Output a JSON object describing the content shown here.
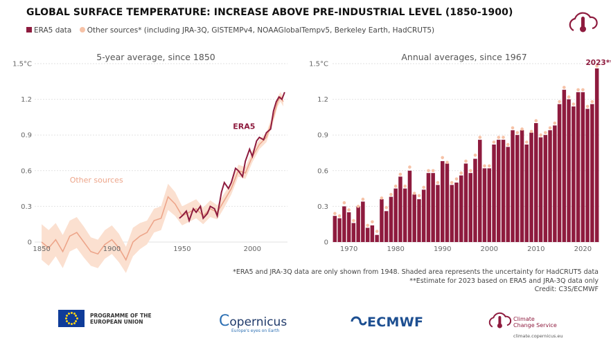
{
  "title": "GLOBAL SURFACE TEMPERATURE: INCREASE ABOVE PRE-INDUSTRIAL LEVEL (1850-1900)",
  "legend": {
    "era5": "ERA5 data",
    "other": "Other sources* (including JRA-3Q, GISTEMPv4, NOAAGlobalTempv5, Berkeley Earth, HadCRUT5)"
  },
  "notes": [
    "*ERA5 and JRA-3Q data are only shown from 1948. Shaded area represents the uncertainty for HadCRUT5 data",
    "**Estimate for 2023 based on ERA5 and JRA-3Q data only",
    "Credit: C3S/ECMWF"
  ],
  "footer": {
    "eu_line1": "PROGRAMME OF THE",
    "eu_line2": "EUROPEAN UNION",
    "copernicus": "opernicus",
    "copernicus_tag": "Europe's eyes on Earth",
    "ecmwf": "ECMWF",
    "c3s_line1": "Climate",
    "c3s_line2": "Change Service",
    "c3s_url": "climate.copernicus.eu"
  },
  "colors": {
    "era5": "#8e1b3e",
    "other": "#f6c2a7",
    "other_line": "#eda58a",
    "band": "#fbe0d0",
    "grid": "#e2e2e2"
  },
  "chart_data": [
    {
      "type": "line",
      "title": "5-year average, since 1850",
      "ylabel": "°C",
      "xlim": [
        1845,
        2025
      ],
      "ylim": [
        0,
        1.5
      ],
      "yticks": [
        0,
        0.3,
        0.6,
        0.9,
        1.2,
        1.5
      ],
      "ytick_labels": [
        "0",
        "0.3",
        "0.6",
        "0.9",
        "1.2",
        "1.5°C"
      ],
      "xticks": [
        1850,
        1900,
        1950,
        2000
      ],
      "grid": true,
      "annotations": [
        {
          "text": "ERA5",
          "x": 2002,
          "y": 0.95,
          "series": "ERA5"
        },
        {
          "text": "Other sources",
          "x": 1870,
          "y": 0.5,
          "series": "Other sources"
        }
      ],
      "series": [
        {
          "name": "Other sources",
          "x": [
            1850,
            1855,
            1860,
            1865,
            1870,
            1875,
            1880,
            1885,
            1890,
            1895,
            1900,
            1905,
            1910,
            1915,
            1920,
            1925,
            1930,
            1935,
            1940,
            1945,
            1950,
            1955,
            1960,
            1965,
            1970,
            1975,
            1980,
            1985,
            1990,
            1995,
            2000,
            2005,
            2010,
            2015,
            2018,
            2020,
            2022
          ],
          "y": [
            0.0,
            -0.05,
            0.02,
            -0.08,
            0.05,
            0.08,
            0.0,
            -0.08,
            -0.1,
            -0.02,
            0.02,
            -0.05,
            -0.15,
            0.0,
            0.05,
            0.08,
            0.18,
            0.2,
            0.38,
            0.32,
            0.22,
            0.25,
            0.28,
            0.22,
            0.28,
            0.25,
            0.35,
            0.45,
            0.6,
            0.58,
            0.72,
            0.82,
            0.88,
            1.05,
            1.18,
            1.22,
            1.18
          ],
          "band_low": [
            -0.15,
            -0.2,
            -0.12,
            -0.22,
            -0.08,
            -0.05,
            -0.13,
            -0.2,
            -0.22,
            -0.14,
            -0.1,
            -0.17,
            -0.26,
            -0.12,
            -0.06,
            -0.02,
            0.08,
            0.1,
            0.27,
            0.22,
            0.14,
            0.17,
            0.2,
            0.15,
            0.21,
            0.19,
            0.29,
            0.4,
            0.55,
            0.53,
            0.67,
            0.78,
            0.84,
            1.01,
            1.14,
            1.18,
            1.14
          ],
          "band_high": [
            0.15,
            0.1,
            0.16,
            0.06,
            0.18,
            0.21,
            0.13,
            0.04,
            0.02,
            0.1,
            0.14,
            0.07,
            -0.04,
            0.12,
            0.16,
            0.18,
            0.28,
            0.3,
            0.49,
            0.42,
            0.3,
            0.33,
            0.36,
            0.29,
            0.35,
            0.31,
            0.41,
            0.5,
            0.65,
            0.63,
            0.77,
            0.86,
            0.92,
            1.09,
            1.22,
            1.26,
            1.22
          ]
        },
        {
          "name": "ERA5",
          "x": [
            1948,
            1950,
            1953,
            1955,
            1958,
            1960,
            1963,
            1965,
            1968,
            1970,
            1973,
            1975,
            1978,
            1980,
            1983,
            1985,
            1988,
            1990,
            1993,
            1995,
            1998,
            2000,
            2003,
            2005,
            2008,
            2010,
            2013,
            2015,
            2017,
            2019,
            2021,
            2023
          ],
          "y": [
            0.2,
            0.22,
            0.26,
            0.18,
            0.28,
            0.25,
            0.3,
            0.2,
            0.24,
            0.3,
            0.28,
            0.22,
            0.42,
            0.5,
            0.45,
            0.5,
            0.62,
            0.6,
            0.55,
            0.68,
            0.78,
            0.72,
            0.85,
            0.88,
            0.86,
            0.92,
            0.95,
            1.1,
            1.18,
            1.22,
            1.2,
            1.26
          ]
        }
      ]
    },
    {
      "type": "bar",
      "title": "Annual averages, since 1967",
      "ylabel": "°C",
      "ylim": [
        0,
        1.5
      ],
      "yticks": [
        0,
        0.3,
        0.6,
        0.9,
        1.2,
        1.5
      ],
      "ytick_labels": [
        "0",
        "0.3",
        "0.6",
        "0.9",
        "1.2",
        "1.5°C"
      ],
      "xticks": [
        1970,
        1980,
        1990,
        2000,
        2010,
        2020
      ],
      "grid": true,
      "annotation": {
        "text": "2023**",
        "x": 2023
      },
      "series": [
        {
          "name": "ERA5 data",
          "x": [
            1967,
            1968,
            1969,
            1970,
            1971,
            1972,
            1973,
            1974,
            1975,
            1976,
            1977,
            1978,
            1979,
            1980,
            1981,
            1982,
            1983,
            1984,
            1985,
            1986,
            1987,
            1988,
            1989,
            1990,
            1991,
            1992,
            1993,
            1994,
            1995,
            1996,
            1997,
            1998,
            1999,
            2000,
            2001,
            2002,
            2003,
            2004,
            2005,
            2006,
            2007,
            2008,
            2009,
            2010,
            2011,
            2012,
            2013,
            2014,
            2015,
            2016,
            2017,
            2018,
            2019,
            2020,
            2021,
            2022,
            2023
          ],
          "values": [
            0.22,
            0.2,
            0.3,
            0.25,
            0.16,
            0.3,
            0.34,
            0.12,
            0.14,
            0.06,
            0.36,
            0.26,
            0.38,
            0.45,
            0.55,
            0.45,
            0.6,
            0.4,
            0.36,
            0.44,
            0.58,
            0.58,
            0.48,
            0.68,
            0.66,
            0.48,
            0.5,
            0.56,
            0.66,
            0.58,
            0.7,
            0.86,
            0.62,
            0.62,
            0.82,
            0.86,
            0.86,
            0.8,
            0.94,
            0.9,
            0.94,
            0.82,
            0.92,
            1.0,
            0.88,
            0.9,
            0.94,
            0.98,
            1.16,
            1.28,
            1.2,
            1.14,
            1.26,
            1.26,
            1.12,
            1.16,
            1.46
          ]
        },
        {
          "name": "Other sources",
          "values": [
            0.24,
            0.22,
            0.33,
            0.27,
            0.18,
            0.3,
            0.36,
            0.14,
            0.17,
            0.09,
            0.37,
            0.29,
            0.4,
            0.47,
            0.57,
            0.47,
            0.63,
            0.41,
            0.39,
            0.46,
            0.6,
            0.6,
            0.5,
            0.71,
            0.67,
            0.5,
            0.53,
            0.58,
            0.68,
            0.6,
            0.73,
            0.88,
            0.64,
            0.64,
            0.84,
            0.88,
            0.88,
            0.82,
            0.96,
            0.92,
            0.95,
            0.84,
            0.93,
            1.02,
            0.9,
            0.92,
            0.96,
            1.0,
            1.18,
            1.3,
            1.22,
            1.16,
            1.28,
            1.28,
            1.14,
            1.18,
            1.48
          ]
        }
      ]
    }
  ]
}
